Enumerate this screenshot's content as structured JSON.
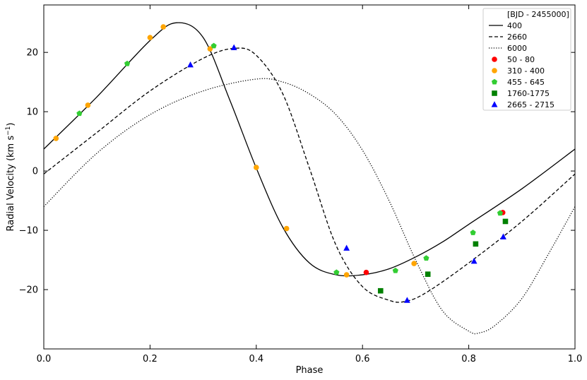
{
  "chart_data": {
    "type": "scatter",
    "xlabel": "Phase",
    "ylabel": "Radial Velocity (km s",
    "ylabel_sup": "−1",
    "ylabel_end": ")",
    "xlim": [
      0.0,
      1.0
    ],
    "ylim": [
      -30,
      28
    ],
    "x_ticks": [
      0.0,
      0.2,
      0.4,
      0.6,
      0.8,
      1.0
    ],
    "x_tick_labels": [
      "0.0",
      "0.2",
      "0.4",
      "0.6",
      "0.8",
      "1.0"
    ],
    "y_ticks": [
      -20,
      -10,
      0,
      10,
      20
    ],
    "y_tick_labels": [
      "−20",
      "−10",
      "0",
      "10",
      "20"
    ],
    "grid": false,
    "legend_title": "[BJD - 2455000]",
    "legend_position": "top-right",
    "model_series": [
      {
        "name": "400",
        "style": "solid",
        "color": "#000000",
        "x": [
          0.0,
          0.1,
          0.2,
          0.25,
          0.3,
          0.35,
          0.4,
          0.45,
          0.5,
          0.55,
          0.6,
          0.65,
          0.7,
          0.75,
          0.8,
          0.9,
          1.0
        ],
        "y": [
          3.7,
          12.5,
          22.0,
          25.0,
          22.5,
          12.0,
          0.5,
          -9.5,
          -15.5,
          -17.5,
          -17.5,
          -16.5,
          -14.5,
          -12.0,
          -9.0,
          -3.0,
          3.7
        ]
      },
      {
        "name": "2660",
        "style": "dashed",
        "color": "#000000",
        "x": [
          0.0,
          0.1,
          0.2,
          0.3,
          0.36,
          0.4,
          0.45,
          0.5,
          0.55,
          0.6,
          0.65,
          0.68,
          0.72,
          0.8,
          0.9,
          1.0
        ],
        "y": [
          -0.5,
          6.5,
          13.5,
          19.0,
          20.7,
          19.5,
          13.0,
          0.5,
          -12.5,
          -19.5,
          -21.8,
          -22.0,
          -20.5,
          -15.5,
          -8.5,
          -0.5
        ]
      },
      {
        "name": "6000",
        "style": "dotted",
        "color": "#000000",
        "x": [
          0.0,
          0.1,
          0.2,
          0.3,
          0.4,
          0.45,
          0.5,
          0.55,
          0.6,
          0.65,
          0.7,
          0.75,
          0.8,
          0.82,
          0.85,
          0.9,
          0.95,
          1.0
        ],
        "y": [
          -6.0,
          3.0,
          9.5,
          13.5,
          15.5,
          15.0,
          13.0,
          9.5,
          3.5,
          -5.0,
          -15.0,
          -23.5,
          -27.0,
          -27.3,
          -26.0,
          -21.5,
          -14.0,
          -6.0
        ]
      }
    ],
    "data_series": [
      {
        "name": "50 - 80",
        "marker": "circle",
        "color": "#ff0000",
        "x": [
          0.607,
          0.864
        ],
        "y": [
          -17.1,
          -7.0
        ]
      },
      {
        "name": "310 - 400",
        "marker": "circle",
        "color": "#ffa500",
        "x": [
          0.023,
          0.083,
          0.2,
          0.225,
          0.313,
          0.4,
          0.457,
          0.57,
          0.697
        ],
        "y": [
          5.5,
          11.1,
          22.5,
          24.3,
          20.6,
          0.6,
          -9.7,
          -17.5,
          -15.6
        ]
      },
      {
        "name": "455 - 645",
        "marker": "pentagon",
        "color": "#32cd32",
        "x": [
          0.067,
          0.157,
          0.32,
          0.551,
          0.662,
          0.72,
          0.808,
          0.859
        ],
        "y": [
          9.7,
          18.1,
          21.1,
          -17.1,
          -16.8,
          -14.7,
          -10.4,
          -7.1
        ]
      },
      {
        "name": "1760-1775",
        "marker": "square",
        "color": "#008000",
        "x": [
          0.634,
          0.723,
          0.813,
          0.869
        ],
        "y": [
          -20.2,
          -17.4,
          -12.3,
          -8.5
        ]
      },
      {
        "name": "2665 - 2715",
        "marker": "triangle",
        "color": "#0000ff",
        "x": [
          0.276,
          0.358,
          0.57,
          0.684,
          0.81,
          0.865
        ],
        "y": [
          17.9,
          20.8,
          -13.0,
          -21.8,
          -15.2,
          -11.1
        ]
      }
    ]
  }
}
